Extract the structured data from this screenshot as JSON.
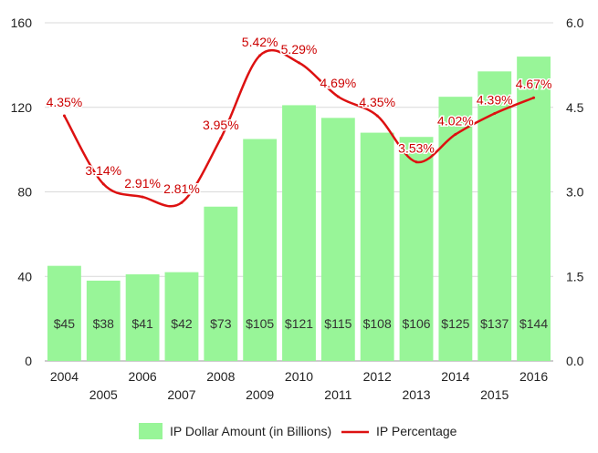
{
  "chart_data": {
    "type": "bar",
    "categories": [
      "2004",
      "2005",
      "2006",
      "2007",
      "2008",
      "2009",
      "2010",
      "2011",
      "2012",
      "2013",
      "2014",
      "2015",
      "2016"
    ],
    "series": [
      {
        "name": "IP Dollar Amount (in Billions)",
        "type": "bar",
        "axis": "left",
        "color": "#98f598",
        "values": [
          45,
          38,
          41,
          42,
          73,
          105,
          121,
          115,
          108,
          106,
          125,
          137,
          144
        ],
        "data_labels": [
          "$45",
          "$38",
          "$41",
          "$42",
          "$73",
          "$105",
          "$121",
          "$115",
          "$108",
          "$106",
          "$125",
          "$137",
          "$144"
        ]
      },
      {
        "name": "IP Percentage",
        "type": "line",
        "axis": "right",
        "color": "#dd1111",
        "values": [
          4.35,
          3.14,
          2.91,
          2.81,
          3.95,
          5.42,
          5.29,
          4.69,
          4.35,
          3.53,
          4.02,
          4.39,
          4.67
        ],
        "data_labels": [
          "4.35%",
          "3.14%",
          "2.91%",
          "2.81%",
          "3.95%",
          "5.42%",
          "5.29%",
          "4.69%",
          "4.35%",
          "3.53%",
          "4.02%",
          "4.39%",
          "4.67%"
        ]
      }
    ],
    "left_axis": {
      "ylim": [
        0,
        160
      ],
      "ticks": [
        "0",
        "40",
        "80",
        "120",
        "160"
      ]
    },
    "right_axis": {
      "ylim": [
        0,
        6
      ],
      "ticks": [
        "0.0",
        "1.5",
        "3.0",
        "4.5",
        "6.0"
      ]
    },
    "grid": true,
    "legend": "bottom"
  }
}
